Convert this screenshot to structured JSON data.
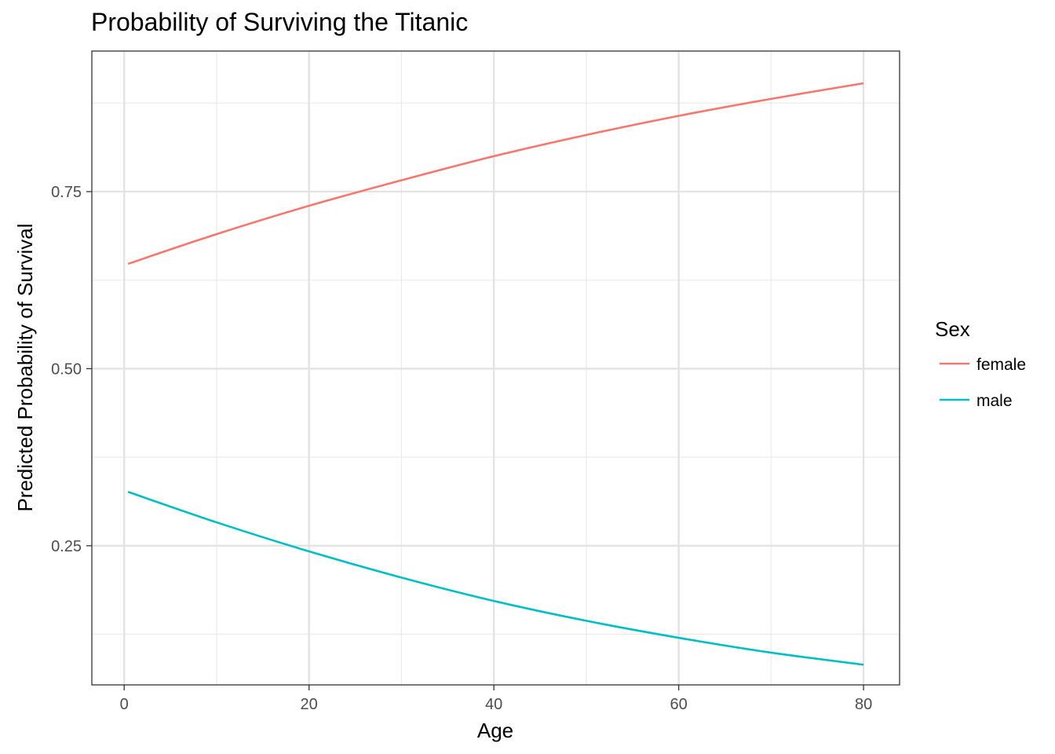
{
  "chart_data": {
    "type": "line",
    "title": "Probability of Surviving the Titanic",
    "xlabel": "Age",
    "ylabel": "Predicted Probability of Survival",
    "xlim": [
      -3.5,
      83.9
    ],
    "ylim": [
      0.0535,
      0.9485
    ],
    "x_ticks": [
      0,
      20,
      40,
      60,
      80
    ],
    "x_tick_labels": [
      "0",
      "20",
      "40",
      "60",
      "80"
    ],
    "x_minor_ticks": [
      10,
      30,
      50,
      70
    ],
    "y_ticks": [
      0.25,
      0.5,
      0.75
    ],
    "y_tick_labels": [
      "0.25",
      "0.50",
      "0.75"
    ],
    "y_minor_ticks": [
      0.125,
      0.375,
      0.625,
      0.875
    ],
    "grid": true,
    "legend": {
      "title": "Sex",
      "position": "right"
    },
    "series": [
      {
        "name": "female",
        "color": "#F8766D",
        "x": [
          0.42,
          10,
          20,
          30,
          40,
          50,
          60,
          70,
          80
        ],
        "y": [
          0.648,
          0.69,
          0.73,
          0.766,
          0.8,
          0.83,
          0.857,
          0.881,
          0.903
        ]
      },
      {
        "name": "male",
        "color": "#00BFC4",
        "x": [
          0.42,
          10,
          20,
          30,
          40,
          50,
          60,
          70,
          80
        ],
        "y": [
          0.326,
          0.283,
          0.242,
          0.205,
          0.172,
          0.144,
          0.12,
          0.099,
          0.082
        ]
      }
    ]
  }
}
